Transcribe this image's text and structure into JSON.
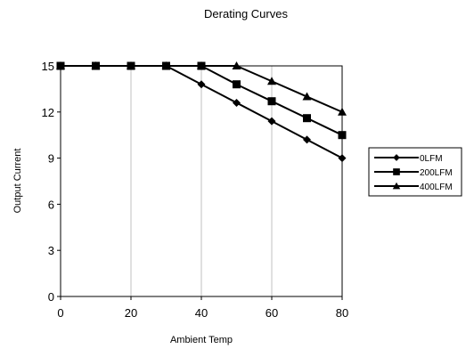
{
  "chart_data": {
    "type": "line",
    "title": "Derating Curves",
    "xlabel": "Ambient Temp",
    "ylabel": "Output Current",
    "xlim": [
      0,
      80
    ],
    "ylim": [
      0,
      15
    ],
    "xticks": [
      "0",
      "20",
      "40",
      "60",
      "80"
    ],
    "yticks": [
      "0",
      "3",
      "6",
      "9",
      "12",
      "15"
    ],
    "grid": "vertical",
    "legend_position": "right",
    "series": [
      {
        "name": "0LFM",
        "marker": "diamond",
        "color": "#000000",
        "x": [
          0,
          10,
          20,
          30,
          40,
          50,
          60,
          70,
          80
        ],
        "y": [
          15,
          15,
          15,
          15,
          13.8,
          12.6,
          11.4,
          10.2,
          9
        ]
      },
      {
        "name": "200LFM",
        "marker": "square",
        "color": "#000000",
        "x": [
          0,
          10,
          20,
          30,
          40,
          50,
          60,
          70,
          80
        ],
        "y": [
          15,
          15,
          15,
          15,
          15,
          13.8,
          12.7,
          11.6,
          10.5
        ]
      },
      {
        "name": "400LFM",
        "marker": "triangle",
        "color": "#000000",
        "x": [
          0,
          10,
          20,
          30,
          40,
          50,
          60,
          70,
          80
        ],
        "y": [
          15,
          15,
          15,
          15,
          15,
          15,
          14,
          13,
          12
        ]
      }
    ]
  }
}
